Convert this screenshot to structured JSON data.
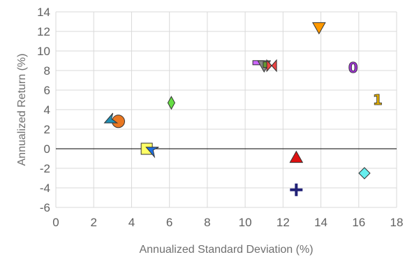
{
  "chart_data": {
    "type": "scatter",
    "xlabel": "Annualized Standard Deviation (%)",
    "ylabel": "Annualized Return (%)",
    "xlim": [
      0,
      18
    ],
    "ylim": [
      -6,
      14
    ],
    "x_ticks": [
      "0",
      "2",
      "4",
      "6",
      "8",
      "10",
      "12",
      "14",
      "16",
      "18"
    ],
    "y_ticks": [
      "-6",
      "-4",
      "-2",
      "0",
      "2",
      "4",
      "6",
      "8",
      "10",
      "12",
      "14"
    ],
    "grid": true,
    "legend": "none",
    "points": [
      {
        "x": 3.3,
        "y": 2.8,
        "marker": "circle",
        "color": "#e87722"
      },
      {
        "x": 2.9,
        "y": 3.0,
        "marker": "arrow",
        "color": "#1f8fb5"
      },
      {
        "x": 6.1,
        "y": 4.7,
        "marker": "diamond-thin",
        "color": "#66dd44"
      },
      {
        "x": 4.8,
        "y": 0.0,
        "marker": "square",
        "color": "#ffff66"
      },
      {
        "x": 5.1,
        "y": -0.2,
        "marker": "arrow-down",
        "color": "#1f6fe0"
      },
      {
        "x": 10.7,
        "y": 8.8,
        "marker": "bar",
        "color": "#cc66ff"
      },
      {
        "x": 11.0,
        "y": 8.5,
        "marker": "triangle-down",
        "color": "#888888"
      },
      {
        "x": 11.1,
        "y": 8.6,
        "marker": "square-small",
        "color": "#669933"
      },
      {
        "x": 11.4,
        "y": 8.5,
        "marker": "bowtie",
        "color": "#ee4444"
      },
      {
        "x": 13.9,
        "y": 12.4,
        "marker": "triangle-down",
        "color": "#ff9900"
      },
      {
        "x": 15.7,
        "y": 8.3,
        "marker": "digit-0",
        "color": "#9933cc"
      },
      {
        "x": 17.0,
        "y": 5.0,
        "marker": "digit-1",
        "color": "#ddaa00"
      },
      {
        "x": 12.7,
        "y": -0.9,
        "marker": "triangle-up",
        "color": "#dd1111"
      },
      {
        "x": 12.7,
        "y": -4.2,
        "marker": "plus",
        "color": "#222277"
      },
      {
        "x": 16.3,
        "y": -2.5,
        "marker": "diamond",
        "color": "#66eeee"
      }
    ]
  }
}
